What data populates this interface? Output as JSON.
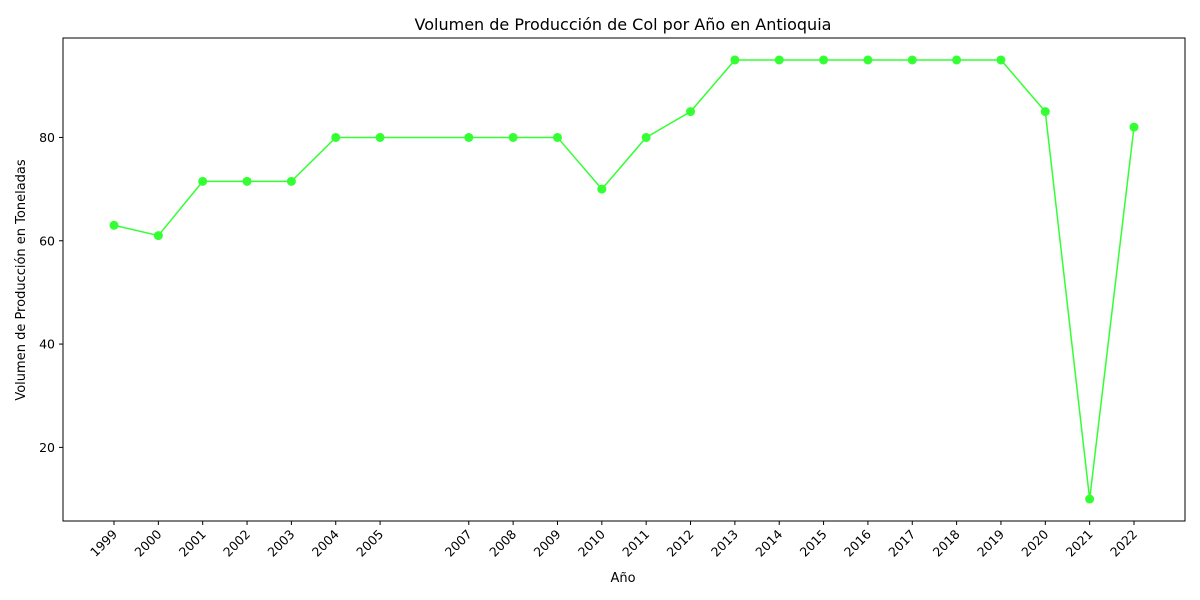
{
  "chart_data": {
    "type": "line",
    "title": "Volumen de Producción de Col por Año en Antioquia",
    "xlabel": "Año",
    "ylabel": "Volumen de Producción en Toneladas",
    "x": [
      1999,
      2000,
      2001,
      2002,
      2003,
      2004,
      2005,
      2007,
      2008,
      2009,
      2010,
      2011,
      2012,
      2013,
      2014,
      2015,
      2016,
      2017,
      2018,
      2019,
      2020,
      2021,
      2022
    ],
    "series": [
      {
        "values": [
          63,
          61,
          71.5,
          71.5,
          71.5,
          80,
          80,
          80,
          80,
          80,
          70,
          80,
          85,
          95,
          95,
          95,
          95,
          95,
          95,
          95,
          85,
          10,
          82
        ],
        "color": "#33ff33"
      }
    ],
    "xlim": [
      1997.85,
      2023.15
    ],
    "ylim": [
      5.75,
      99.25
    ],
    "yticks": [
      20,
      40,
      60,
      80
    ],
    "xtick_rotation": 45,
    "grid": false,
    "legend": "none",
    "marker": "circle"
  }
}
